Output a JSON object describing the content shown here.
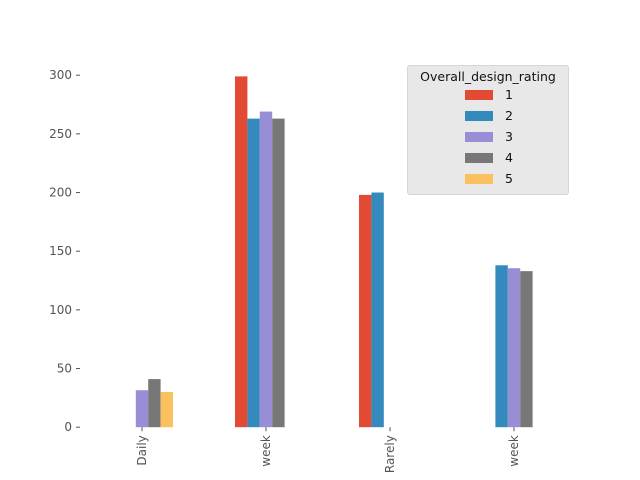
{
  "chart_data": {
    "type": "bar",
    "categories": [
      "Daily",
      "week",
      "Rarely",
      "week"
    ],
    "series": [
      {
        "name": "1",
        "color": "#E24A33",
        "values": [
          null,
          299,
          198,
          null
        ]
      },
      {
        "name": "2",
        "color": "#348ABD",
        "values": [
          null,
          263,
          200,
          138
        ]
      },
      {
        "name": "3",
        "color": "#988ED5",
        "values": [
          31.5,
          269,
          null,
          135.5
        ]
      },
      {
        "name": "4",
        "color": "#777777",
        "values": [
          41,
          263,
          null,
          133
        ]
      },
      {
        "name": "5",
        "color": "#FBC15E",
        "values": [
          30,
          null,
          null,
          null
        ]
      }
    ],
    "legend_title": "Overall_design_rating",
    "legend_position": "top-right",
    "yticks": [
      0,
      50,
      100,
      150,
      200,
      250,
      300
    ],
    "ylim": [
      0,
      315
    ],
    "grid": false,
    "xlabel": "",
    "ylabel": "",
    "title": ""
  }
}
